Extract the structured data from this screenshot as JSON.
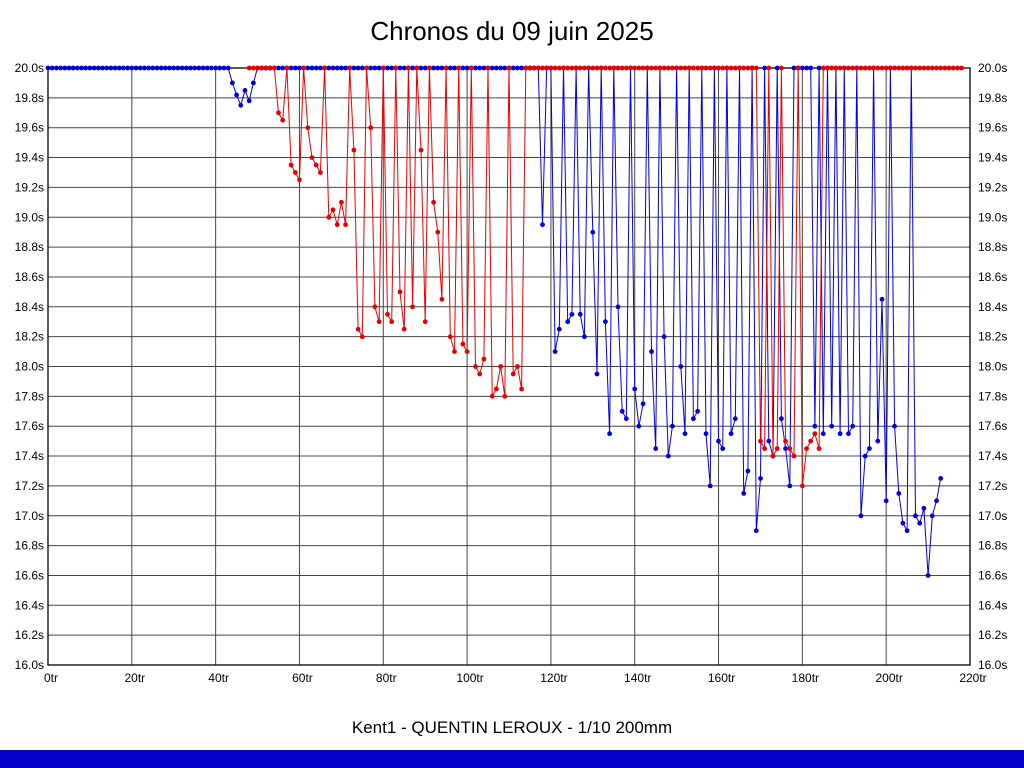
{
  "window": {
    "bottom_bar_color": "#0000c8"
  },
  "chart_data": {
    "type": "line",
    "title": "Chronos du 09 juin 2025",
    "caption": "Kent1 - QUENTIN LEROUX - 1/10 200mm",
    "x_suffix": "tr",
    "y_suffix": "s",
    "xlim": [
      0,
      220
    ],
    "ylim": [
      16.0,
      20.0
    ],
    "x_ticks": [
      0,
      20,
      40,
      60,
      80,
      100,
      120,
      140,
      160,
      180,
      200,
      220
    ],
    "y_ticks": [
      20.0,
      19.8,
      19.6,
      19.4,
      19.2,
      19.0,
      18.8,
      18.6,
      18.4,
      18.2,
      18.0,
      17.8,
      17.6,
      17.4,
      17.2,
      17.0,
      16.8,
      16.6,
      16.4,
      16.2,
      16.0
    ],
    "y_decimals": 1,
    "grid": true,
    "grid_color": "#444444",
    "axis_color": "#000000",
    "series": [
      {
        "name": "driver-blue",
        "color": "#0000dd",
        "start_lap": 0,
        "times": [
          20,
          20,
          20,
          20,
          20,
          20,
          20,
          20,
          20,
          20,
          20,
          20,
          20,
          20,
          20,
          20,
          20,
          20,
          20,
          20,
          20,
          20,
          20,
          20,
          20,
          20,
          20,
          20,
          20,
          20,
          20,
          20,
          20,
          20,
          20,
          20,
          20,
          20,
          20,
          20,
          20,
          20,
          20,
          20,
          19.9,
          19.82,
          19.75,
          19.85,
          19.78,
          19.9,
          20,
          20,
          20,
          20,
          20,
          20,
          20,
          20,
          20,
          20,
          20,
          20,
          20,
          20,
          20,
          20,
          20,
          20,
          20,
          20,
          20,
          20,
          20,
          20,
          20,
          20,
          20,
          20,
          20,
          20,
          20,
          20,
          20,
          20,
          20,
          20,
          20,
          20,
          20,
          20,
          20,
          20,
          20,
          20,
          20,
          20,
          20,
          20,
          20,
          20,
          20,
          20,
          20,
          20,
          20,
          20,
          20,
          20,
          20,
          20,
          20,
          20,
          20,
          20,
          20,
          20,
          20,
          20,
          18.95,
          20,
          20,
          18.1,
          18.25,
          20,
          18.3,
          18.35,
          20,
          18.35,
          18.2,
          20,
          18.9,
          17.95,
          20,
          18.3,
          17.55,
          20,
          18.4,
          17.7,
          17.65,
          20,
          17.85,
          17.6,
          17.75,
          20,
          18.1,
          17.45,
          20,
          18.2,
          17.4,
          17.6,
          20,
          18,
          17.55,
          20,
          17.65,
          17.7,
          20,
          17.55,
          17.2,
          20,
          17.5,
          17.45,
          20,
          17.55,
          17.65,
          20,
          17.15,
          17.3,
          20,
          16.9,
          17.25,
          20,
          17.5,
          17.4,
          20,
          17.65,
          17.45,
          17.2,
          20,
          20,
          20,
          20,
          20,
          17.6,
          20,
          17.55,
          20,
          17.6,
          20,
          17.55,
          20,
          17.55,
          17.6,
          20,
          17,
          17.4,
          17.45,
          20,
          17.5,
          18.45,
          17.1,
          20,
          17.6,
          17.15,
          16.95,
          16.9,
          20,
          17,
          16.95,
          17.05,
          16.6,
          17,
          17.1,
          17.25
        ]
      },
      {
        "name": "driver-red",
        "color": "#e80000",
        "start_lap": 48,
        "times": [
          20,
          20,
          20,
          20,
          20,
          20,
          20,
          19.7,
          19.65,
          20,
          19.35,
          19.3,
          19.25,
          20,
          19.6,
          19.4,
          19.35,
          19.3,
          20,
          19,
          19.05,
          18.95,
          19.1,
          18.95,
          20,
          19.45,
          18.25,
          18.2,
          20,
          19.6,
          18.4,
          18.3,
          20,
          18.35,
          18.3,
          20,
          18.5,
          18.25,
          20,
          18.4,
          20,
          19.45,
          18.3,
          20,
          19.1,
          18.9,
          18.45,
          20,
          18.2,
          18.1,
          20,
          18.15,
          18.1,
          20,
          18,
          17.95,
          18.05,
          20,
          17.8,
          17.85,
          18,
          17.8,
          20,
          17.95,
          18,
          17.85,
          20,
          20,
          20,
          20,
          20,
          20,
          20,
          20,
          20,
          20,
          20,
          20,
          20,
          20,
          20,
          20,
          20,
          20,
          20,
          20,
          20,
          20,
          20,
          20,
          20,
          20,
          20,
          20,
          20,
          20,
          20,
          20,
          20,
          20,
          20,
          20,
          20,
          20,
          20,
          20,
          20,
          20,
          20,
          20,
          20,
          20,
          20,
          20,
          20,
          20,
          20,
          20,
          20,
          20,
          20,
          20,
          17.5,
          17.45,
          20,
          17.4,
          17.45,
          20,
          17.5,
          17.45,
          17.4,
          20,
          17.2,
          17.45,
          17.5,
          17.55,
          17.45,
          20,
          20,
          20,
          20,
          20,
          20,
          20,
          20,
          20,
          20,
          20,
          20,
          20,
          20,
          20,
          20,
          20,
          20,
          20,
          20,
          20,
          20,
          20,
          20,
          20,
          20,
          20,
          20,
          20,
          20,
          20,
          20,
          20,
          20
        ]
      }
    ]
  }
}
